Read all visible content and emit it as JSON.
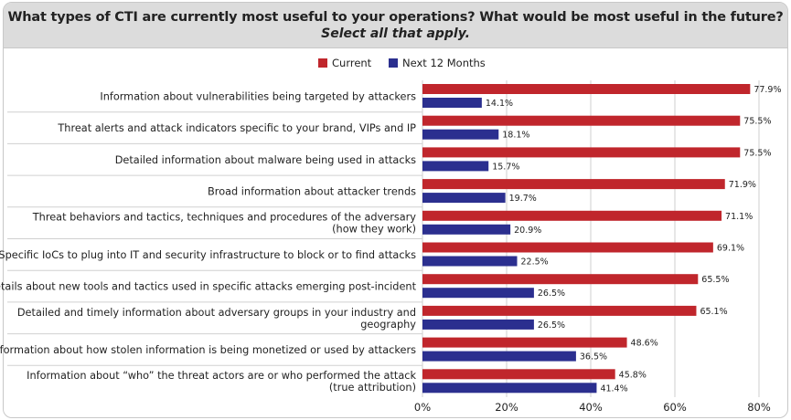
{
  "header": {
    "title": "What types of CTI are currently most useful to your operations? What would be most useful in the future?",
    "subtitle": "Select all that apply."
  },
  "colors": {
    "current": "#c0262c",
    "next12": "#2b2f8f",
    "grid": "#cfcfcf"
  },
  "chart_data": {
    "type": "bar",
    "orientation": "horizontal",
    "categories": [
      "Information about vulnerabilities being targeted by attackers",
      "Threat alerts and attack indicators specific to your brand, VIPs and IP",
      "Detailed information about malware being used in attacks",
      "Broad information about attacker trends",
      "Threat behaviors and tactics, techniques and procedures of the adversary (how they work)",
      "Specific IoCs to plug into IT and security infrastructure to block or to find attacks",
      "Details about new tools and tactics used in specific attacks emerging post-incident",
      "Detailed and timely information about adversary groups in your industry and geography",
      "Information about how stolen information is being monetized or used by attackers",
      "Information about “who” the threat actors are or who performed the attack (true attribution)"
    ],
    "category_lines": [
      [
        "Information about vulnerabilities being targeted by attackers"
      ],
      [
        "Threat alerts and attack indicators specific to your brand, VIPs and IP"
      ],
      [
        "Detailed information about malware being used in attacks"
      ],
      [
        "Broad information about attacker trends"
      ],
      [
        "Threat behaviors and tactics, techniques and procedures of the adversary",
        "(how they work)"
      ],
      [
        "Specific IoCs to plug into IT and security infrastructure to block or to find attacks"
      ],
      [
        "Details about new tools and tactics used in specific attacks emerging post-incident"
      ],
      [
        "Detailed and timely information about adversary groups in your industry and",
        "geography"
      ],
      [
        "Information about how stolen information is being monetized or used by attackers"
      ],
      [
        "Information about “who” the threat actors are or who performed the attack",
        "(true attribution)"
      ]
    ],
    "series": [
      {
        "name": "Current",
        "values": [
          77.9,
          75.5,
          75.5,
          71.9,
          71.1,
          69.1,
          65.5,
          65.1,
          48.6,
          45.8
        ]
      },
      {
        "name": "Next 12 Months",
        "values": [
          14.1,
          18.1,
          15.7,
          19.7,
          20.9,
          22.5,
          26.5,
          26.5,
          36.5,
          41.4
        ]
      }
    ],
    "xlim": [
      0,
      80
    ],
    "xticks": [
      "0%",
      "20%",
      "40%",
      "60%",
      "80%"
    ],
    "legend_position": "top-center",
    "grid": true
  }
}
